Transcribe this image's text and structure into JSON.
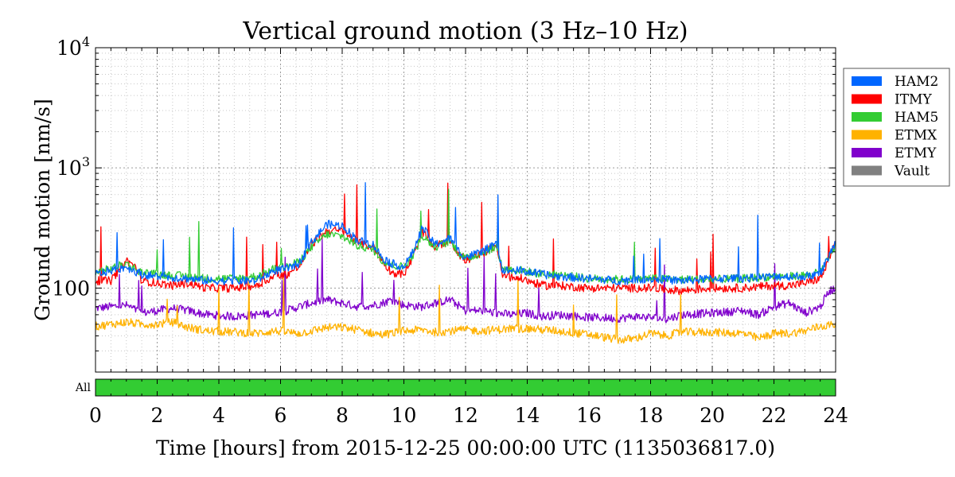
{
  "chart_data": {
    "type": "line",
    "title": "Vertical ground motion (3 Hz–10 Hz)",
    "xlabel": "Time [hours] from 2015-12-25 00:00:00 UTC (1135036817.0)",
    "ylabel": "Ground motion [nm/s]",
    "xlim": [
      0,
      24
    ],
    "ylim": [
      20,
      10000
    ],
    "yscale": "log",
    "grid": true,
    "legend_position": "right-outside-top",
    "x_ticks": [
      "0",
      "2",
      "4",
      "6",
      "8",
      "10",
      "12",
      "14",
      "16",
      "18",
      "20",
      "22",
      "24"
    ],
    "y_ticks": [
      {
        "base": "10",
        "exp": "4"
      },
      {
        "base": "10",
        "exp": "3"
      },
      {
        "base": "100",
        "exp": ""
      }
    ],
    "segment_bar": {
      "label": "All",
      "color": "#33cc33",
      "start": 0,
      "end": 24
    },
    "series": [
      {
        "name": "HAM2",
        "color": "#0066ff",
        "keypoints": [
          [
            0,
            130
          ],
          [
            0.5,
            140
          ],
          [
            1.0,
            150
          ],
          [
            1.5,
            130
          ],
          [
            2.0,
            125
          ],
          [
            3.0,
            120
          ],
          [
            3.6,
            115
          ],
          [
            4.5,
            115
          ],
          [
            5.2,
            115
          ],
          [
            5.8,
            140
          ],
          [
            6.2,
            145
          ],
          [
            6.6,
            160
          ],
          [
            7.0,
            240
          ],
          [
            7.5,
            340
          ],
          [
            8.0,
            330
          ],
          [
            8.5,
            250
          ],
          [
            9.0,
            230
          ],
          [
            9.3,
            180
          ],
          [
            9.6,
            160
          ],
          [
            10.0,
            150
          ],
          [
            10.3,
            200
          ],
          [
            10.6,
            320
          ],
          [
            11.0,
            230
          ],
          [
            11.5,
            260
          ],
          [
            11.8,
            200
          ],
          [
            12.0,
            180
          ],
          [
            12.5,
            200
          ],
          [
            13.0,
            230
          ],
          [
            13.2,
            140
          ],
          [
            13.8,
            140
          ],
          [
            14.5,
            130
          ],
          [
            15.0,
            125
          ],
          [
            16.0,
            120
          ],
          [
            17.0,
            115
          ],
          [
            18.0,
            120
          ],
          [
            19.0,
            115
          ],
          [
            20.0,
            120
          ],
          [
            21.0,
            120
          ],
          [
            22.0,
            125
          ],
          [
            22.5,
            125
          ],
          [
            23.0,
            125
          ],
          [
            23.5,
            130
          ],
          [
            23.8,
            190
          ],
          [
            24.0,
            240
          ]
        ]
      },
      {
        "name": "ITMY",
        "color": "#ff0000",
        "keypoints": [
          [
            0,
            115
          ],
          [
            0.5,
            115
          ],
          [
            1.0,
            170
          ],
          [
            1.3,
            150
          ],
          [
            1.5,
            115
          ],
          [
            2.0,
            110
          ],
          [
            2.5,
            105
          ],
          [
            3.0,
            110
          ],
          [
            3.6,
            100
          ],
          [
            4.5,
            100
          ],
          [
            5.2,
            105
          ],
          [
            5.8,
            125
          ],
          [
            6.2,
            130
          ],
          [
            6.6,
            150
          ],
          [
            7.0,
            230
          ],
          [
            7.5,
            300
          ],
          [
            8.0,
            300
          ],
          [
            8.5,
            240
          ],
          [
            9.0,
            220
          ],
          [
            9.3,
            170
          ],
          [
            9.6,
            135
          ],
          [
            10.0,
            130
          ],
          [
            10.3,
            180
          ],
          [
            10.6,
            290
          ],
          [
            11.0,
            220
          ],
          [
            11.5,
            250
          ],
          [
            11.8,
            190
          ],
          [
            12.0,
            170
          ],
          [
            12.5,
            190
          ],
          [
            13.0,
            230
          ],
          [
            13.2,
            125
          ],
          [
            13.8,
            120
          ],
          [
            14.5,
            105
          ],
          [
            15.0,
            105
          ],
          [
            16.0,
            100
          ],
          [
            17.0,
            100
          ],
          [
            18.0,
            100
          ],
          [
            19.0,
            95
          ],
          [
            20.0,
            100
          ],
          [
            21.0,
            100
          ],
          [
            22.0,
            105
          ],
          [
            22.5,
            105
          ],
          [
            23.0,
            110
          ],
          [
            23.5,
            120
          ],
          [
            23.8,
            170
          ],
          [
            24.0,
            250
          ]
        ]
      },
      {
        "name": "HAM5",
        "color": "#33cc33",
        "keypoints": [
          [
            0,
            135
          ],
          [
            0.5,
            145
          ],
          [
            1.0,
            160
          ],
          [
            1.5,
            135
          ],
          [
            2.0,
            130
          ],
          [
            3.0,
            125
          ],
          [
            3.6,
            120
          ],
          [
            4.5,
            120
          ],
          [
            5.2,
            125
          ],
          [
            5.8,
            145
          ],
          [
            6.2,
            150
          ],
          [
            6.6,
            165
          ],
          [
            7.0,
            220
          ],
          [
            7.5,
            280
          ],
          [
            8.0,
            270
          ],
          [
            8.5,
            225
          ],
          [
            9.0,
            210
          ],
          [
            9.3,
            170
          ],
          [
            9.6,
            155
          ],
          [
            10.0,
            150
          ],
          [
            10.3,
            190
          ],
          [
            10.6,
            270
          ],
          [
            11.0,
            220
          ],
          [
            11.5,
            245
          ],
          [
            11.8,
            195
          ],
          [
            12.0,
            175
          ],
          [
            12.5,
            195
          ],
          [
            13.0,
            220
          ],
          [
            13.2,
            145
          ],
          [
            13.8,
            140
          ],
          [
            14.5,
            130
          ],
          [
            15.0,
            130
          ],
          [
            16.0,
            120
          ],
          [
            17.0,
            118
          ],
          [
            18.0,
            120
          ],
          [
            19.0,
            118
          ],
          [
            20.0,
            118
          ],
          [
            21.0,
            120
          ],
          [
            22.0,
            125
          ],
          [
            22.5,
            125
          ],
          [
            23.0,
            128
          ],
          [
            23.5,
            135
          ],
          [
            23.8,
            180
          ],
          [
            24.0,
            230
          ]
        ]
      },
      {
        "name": "ETMX",
        "color": "#ffb200",
        "keypoints": [
          [
            0,
            48
          ],
          [
            0.5,
            50
          ],
          [
            1.0,
            52
          ],
          [
            1.5,
            50
          ],
          [
            2.0,
            50
          ],
          [
            2.5,
            52
          ],
          [
            3.0,
            47
          ],
          [
            3.6,
            44
          ],
          [
            4.5,
            43
          ],
          [
            5.2,
            42
          ],
          [
            5.8,
            44
          ],
          [
            6.2,
            43
          ],
          [
            6.6,
            42
          ],
          [
            7.0,
            44
          ],
          [
            7.5,
            47
          ],
          [
            8.0,
            47
          ],
          [
            8.5,
            45
          ],
          [
            9.0,
            42
          ],
          [
            9.3,
            41
          ],
          [
            9.6,
            42
          ],
          [
            10.0,
            44
          ],
          [
            10.6,
            45
          ],
          [
            11.0,
            43
          ],
          [
            11.5,
            44
          ],
          [
            12.0,
            45
          ],
          [
            12.5,
            44
          ],
          [
            13.0,
            45
          ],
          [
            13.5,
            46
          ],
          [
            14.0,
            46
          ],
          [
            14.5,
            45
          ],
          [
            15.0,
            44
          ],
          [
            16.0,
            41
          ],
          [
            17.0,
            37
          ],
          [
            17.5,
            38
          ],
          [
            18.0,
            42
          ],
          [
            18.5,
            40
          ],
          [
            19.0,
            43
          ],
          [
            20.0,
            43
          ],
          [
            21.0,
            42
          ],
          [
            21.5,
            38
          ],
          [
            22.0,
            42
          ],
          [
            22.5,
            42
          ],
          [
            23.0,
            44
          ],
          [
            23.5,
            48
          ],
          [
            24.0,
            50
          ]
        ]
      },
      {
        "name": "ETMY",
        "color": "#8000cc",
        "keypoints": [
          [
            0,
            68
          ],
          [
            0.5,
            70
          ],
          [
            1.0,
            72
          ],
          [
            1.5,
            62
          ],
          [
            2.0,
            65
          ],
          [
            2.5,
            68
          ],
          [
            3.0,
            65
          ],
          [
            3.6,
            60
          ],
          [
            4.5,
            58
          ],
          [
            5.2,
            60
          ],
          [
            5.8,
            62
          ],
          [
            6.2,
            65
          ],
          [
            6.6,
            70
          ],
          [
            7.0,
            75
          ],
          [
            7.5,
            80
          ],
          [
            8.0,
            75
          ],
          [
            8.5,
            70
          ],
          [
            9.0,
            72
          ],
          [
            9.3,
            75
          ],
          [
            9.6,
            80
          ],
          [
            10.0,
            72
          ],
          [
            10.6,
            70
          ],
          [
            11.0,
            75
          ],
          [
            11.5,
            80
          ],
          [
            12.0,
            65
          ],
          [
            12.5,
            65
          ],
          [
            13.0,
            62
          ],
          [
            13.5,
            60
          ],
          [
            14.0,
            62
          ],
          [
            14.5,
            58
          ],
          [
            15.0,
            60
          ],
          [
            16.0,
            57
          ],
          [
            17.0,
            56
          ],
          [
            17.5,
            58
          ],
          [
            18.0,
            57
          ],
          [
            18.5,
            55
          ],
          [
            19.0,
            60
          ],
          [
            20.0,
            62
          ],
          [
            21.0,
            65
          ],
          [
            21.5,
            60
          ],
          [
            22.0,
            70
          ],
          [
            22.5,
            75
          ],
          [
            23.0,
            62
          ],
          [
            23.5,
            70
          ],
          [
            23.8,
            95
          ],
          [
            24.0,
            100
          ]
        ]
      },
      {
        "name": "Vault",
        "color": "#808080",
        "keypoints": []
      }
    ]
  }
}
